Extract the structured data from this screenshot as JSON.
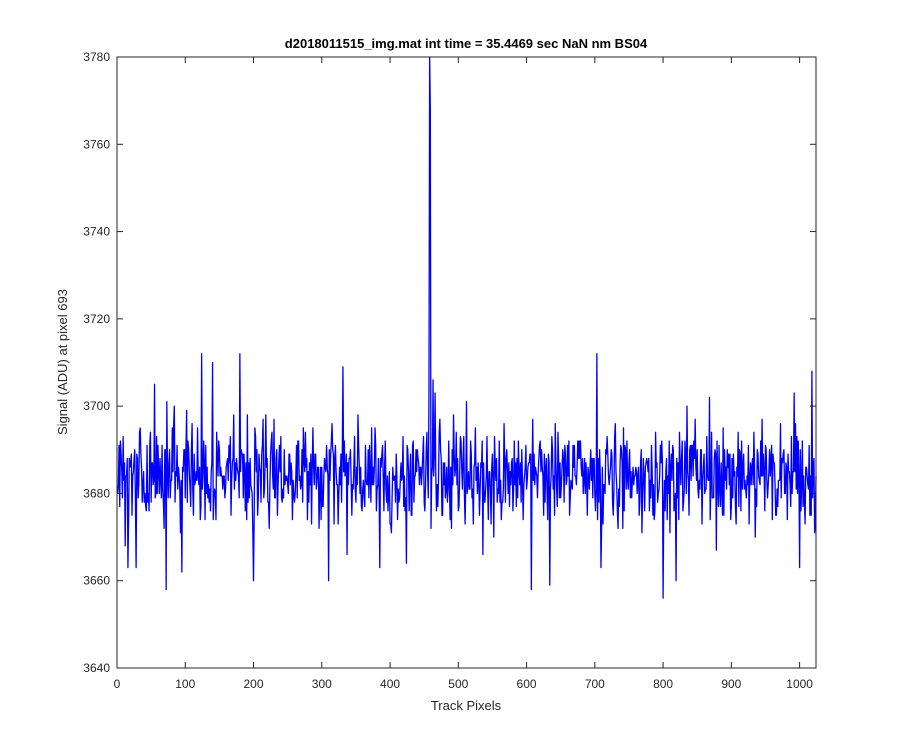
{
  "chart_data": {
    "type": "line",
    "title": "d2018011515_img.mat int time = 35.4469 sec  NaN nm BS04",
    "xlabel": "Track Pixels",
    "ylabel": "Signal (ADU) at pixel 693",
    "xlim": [
      0,
      1024
    ],
    "ylim": [
      3640,
      3780
    ],
    "xticks": [
      0,
      100,
      200,
      300,
      400,
      500,
      600,
      700,
      800,
      900,
      1000
    ],
    "yticks": [
      3640,
      3660,
      3680,
      3700,
      3720,
      3740,
      3760,
      3780
    ],
    "grid": false,
    "legend": "none",
    "series": [
      {
        "color": "#0000ff",
        "x_start": 1,
        "x_step": 1,
        "baseline": 3684,
        "spread": 6,
        "noise_range": [
          3656,
          3712
        ],
        "point_count": 1024,
        "features": [
          {
            "x": 458,
            "y": 3781
          },
          {
            "x": 459,
            "y": 3768
          },
          {
            "x": 457,
            "y": 3702
          },
          {
            "x": 463,
            "y": 3706
          },
          {
            "x": 466,
            "y": 3703
          },
          {
            "x": 72,
            "y": 3658
          },
          {
            "x": 124,
            "y": 3712
          },
          {
            "x": 180,
            "y": 3712
          },
          {
            "x": 200,
            "y": 3660
          },
          {
            "x": 310,
            "y": 3660
          },
          {
            "x": 331,
            "y": 3709
          },
          {
            "x": 607,
            "y": 3658
          },
          {
            "x": 703,
            "y": 3712
          },
          {
            "x": 800,
            "y": 3656
          },
          {
            "x": 1018,
            "y": 3708
          },
          {
            "x": 16,
            "y": 3663
          },
          {
            "x": 28,
            "y": 3663
          },
          {
            "x": 55,
            "y": 3705
          },
          {
            "x": 95,
            "y": 3662
          },
          {
            "x": 140,
            "y": 3710
          },
          {
            "x": 385,
            "y": 3663
          },
          {
            "x": 634,
            "y": 3659
          },
          {
            "x": 819,
            "y": 3660
          },
          {
            "x": 868,
            "y": 3702
          },
          {
            "x": 992,
            "y": 3703
          }
        ]
      }
    ]
  }
}
